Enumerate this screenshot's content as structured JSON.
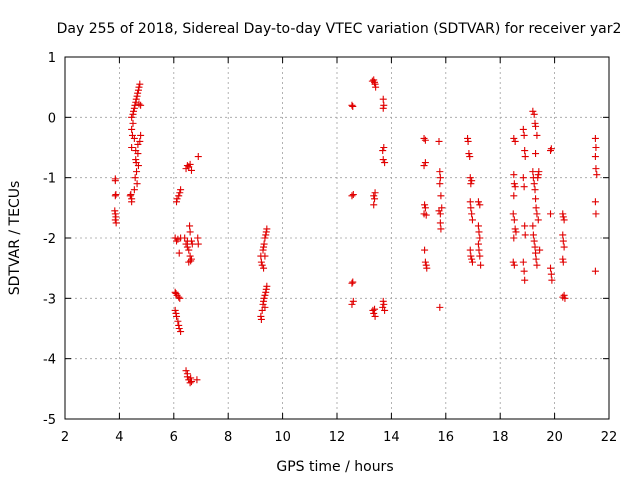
{
  "chart_data": {
    "type": "scatter",
    "title": "Day 255 of 2018, Sidereal Day-to-day VTEC variation (SDTVAR) for receiver yar2",
    "xlabel": "GPS time / hours",
    "ylabel": "SDTVAR / TECUs",
    "xlim": [
      2,
      22
    ],
    "ylim": [
      -5,
      1
    ],
    "xticks": [
      "2",
      "4",
      "6",
      "8",
      "10",
      "12",
      "14",
      "16",
      "18",
      "20",
      "22"
    ],
    "yticks": [
      "1",
      "0",
      "-1",
      "-2",
      "-3",
      "-4",
      "-5"
    ],
    "grid": true,
    "marker": "plus",
    "color": "#e00000",
    "series": [
      {
        "name": "SDTVAR",
        "points": [
          [
            3.85,
            -1.02
          ],
          [
            3.85,
            -1.05
          ],
          [
            3.87,
            -1.28
          ],
          [
            3.85,
            -1.3
          ],
          [
            3.83,
            -1.55
          ],
          [
            3.85,
            -1.6
          ],
          [
            3.87,
            -1.65
          ],
          [
            3.85,
            -1.7
          ],
          [
            3.88,
            -1.75
          ],
          [
            4.4,
            -1.3
          ],
          [
            4.42,
            -1.28
          ],
          [
            4.45,
            -1.4
          ],
          [
            4.45,
            -1.35
          ],
          [
            4.45,
            -0.5
          ],
          [
            4.45,
            -0.2
          ],
          [
            4.45,
            0.0
          ],
          [
            4.48,
            -0.3
          ],
          [
            4.5,
            -0.1
          ],
          [
            4.5,
            0.05
          ],
          [
            4.52,
            0.1
          ],
          [
            4.55,
            0.15
          ],
          [
            4.55,
            -0.35
          ],
          [
            4.57,
            0.2
          ],
          [
            4.6,
            0.25
          ],
          [
            4.6,
            -0.55
          ],
          [
            4.62,
            0.3
          ],
          [
            4.63,
            -0.9
          ],
          [
            4.65,
            0.35
          ],
          [
            4.65,
            -1.1
          ],
          [
            4.67,
            0.4
          ],
          [
            4.68,
            -0.6
          ],
          [
            4.7,
            0.45
          ],
          [
            4.7,
            -0.8
          ],
          [
            4.72,
            0.5
          ],
          [
            4.72,
            0.22
          ],
          [
            4.75,
            0.55
          ],
          [
            4.75,
            -0.4
          ],
          [
            4.78,
            0.2
          ],
          [
            4.78,
            -0.3
          ],
          [
            4.6,
            -0.7
          ],
          [
            4.55,
            -1.2
          ],
          [
            4.58,
            -1.0
          ],
          [
            4.62,
            -0.75
          ],
          [
            4.68,
            -0.45
          ],
          [
            6.1,
            -1.4
          ],
          [
            6.12,
            -1.35
          ],
          [
            6.18,
            -1.3
          ],
          [
            6.22,
            -1.25
          ],
          [
            6.25,
            -1.2
          ],
          [
            6.05,
            -2.0
          ],
          [
            6.1,
            -2.05
          ],
          [
            6.15,
            -2.02
          ],
          [
            6.2,
            -2.25
          ],
          [
            6.25,
            -2.0
          ],
          [
            6.05,
            -2.9
          ],
          [
            6.08,
            -2.92
          ],
          [
            6.12,
            -2.95
          ],
          [
            6.18,
            -2.98
          ],
          [
            6.22,
            -3.0
          ],
          [
            6.05,
            -3.2
          ],
          [
            6.08,
            -3.25
          ],
          [
            6.1,
            -3.3
          ],
          [
            6.15,
            -3.38
          ],
          [
            6.18,
            -3.45
          ],
          [
            6.2,
            -3.5
          ],
          [
            6.25,
            -3.55
          ],
          [
            6.45,
            -0.85
          ],
          [
            6.5,
            -0.8
          ],
          [
            6.55,
            -0.82
          ],
          [
            6.6,
            -0.78
          ],
          [
            6.65,
            -0.88
          ],
          [
            6.4,
            -2.0
          ],
          [
            6.45,
            -2.1
          ],
          [
            6.5,
            -2.15
          ],
          [
            6.55,
            -2.2
          ],
          [
            6.6,
            -2.3
          ],
          [
            6.65,
            -2.35
          ],
          [
            6.55,
            -2.4
          ],
          [
            6.62,
            -2.38
          ],
          [
            6.58,
            -1.8
          ],
          [
            6.6,
            -1.9
          ],
          [
            6.65,
            -2.05
          ],
          [
            6.68,
            -2.1
          ],
          [
            6.5,
            -2.05
          ],
          [
            6.45,
            -4.2
          ],
          [
            6.5,
            -4.3
          ],
          [
            6.55,
            -4.35
          ],
          [
            6.6,
            -4.4
          ],
          [
            6.62,
            -4.32
          ],
          [
            6.65,
            -4.38
          ],
          [
            6.5,
            -4.25
          ],
          [
            6.9,
            -0.65
          ],
          [
            6.88,
            -2.0
          ],
          [
            6.9,
            -2.1
          ],
          [
            6.85,
            -4.35
          ],
          [
            9.2,
            -2.3
          ],
          [
            9.22,
            -2.4
          ],
          [
            9.25,
            -2.45
          ],
          [
            9.28,
            -2.2
          ],
          [
            9.3,
            -2.15
          ],
          [
            9.32,
            -2.1
          ],
          [
            9.35,
            -2.0
          ],
          [
            9.38,
            -1.95
          ],
          [
            9.4,
            -1.9
          ],
          [
            9.42,
            -1.85
          ],
          [
            9.35,
            -2.3
          ],
          [
            9.3,
            -2.5
          ],
          [
            9.2,
            -3.3
          ],
          [
            9.22,
            -3.35
          ],
          [
            9.25,
            -3.2
          ],
          [
            9.28,
            -3.1
          ],
          [
            9.3,
            -3.05
          ],
          [
            9.32,
            -3.0
          ],
          [
            9.35,
            -2.95
          ],
          [
            9.38,
            -2.9
          ],
          [
            9.4,
            -2.85
          ],
          [
            9.42,
            -2.8
          ],
          [
            9.35,
            -3.15
          ],
          [
            12.55,
            0.2
          ],
          [
            12.58,
            0.18
          ],
          [
            12.55,
            -1.3
          ],
          [
            12.6,
            -1.28
          ],
          [
            12.55,
            -2.75
          ],
          [
            12.58,
            -2.73
          ],
          [
            12.55,
            -3.1
          ],
          [
            12.6,
            -3.05
          ],
          [
            13.3,
            0.6
          ],
          [
            13.35,
            0.62
          ],
          [
            13.38,
            0.58
          ],
          [
            13.4,
            0.55
          ],
          [
            13.42,
            0.5
          ],
          [
            13.35,
            -1.3
          ],
          [
            13.38,
            -1.35
          ],
          [
            13.4,
            -1.25
          ],
          [
            13.35,
            -1.45
          ],
          [
            13.32,
            -3.2
          ],
          [
            13.35,
            -3.25
          ],
          [
            13.4,
            -3.3
          ],
          [
            13.38,
            -3.18
          ],
          [
            13.7,
            0.3
          ],
          [
            13.72,
            0.2
          ],
          [
            13.7,
            0.15
          ],
          [
            13.68,
            -0.55
          ],
          [
            13.7,
            -0.7
          ],
          [
            13.72,
            -0.5
          ],
          [
            13.75,
            -0.75
          ],
          [
            13.7,
            -3.05
          ],
          [
            13.72,
            -3.1
          ],
          [
            13.75,
            -3.2
          ],
          [
            13.68,
            -3.15
          ],
          [
            15.2,
            -0.35
          ],
          [
            15.25,
            -0.38
          ],
          [
            15.2,
            -0.8
          ],
          [
            15.25,
            -0.75
          ],
          [
            15.22,
            -1.45
          ],
          [
            15.25,
            -1.5
          ],
          [
            15.2,
            -1.6
          ],
          [
            15.28,
            -1.62
          ],
          [
            15.22,
            -2.2
          ],
          [
            15.25,
            -2.4
          ],
          [
            15.28,
            -2.45
          ],
          [
            15.3,
            -2.5
          ],
          [
            15.75,
            -0.4
          ],
          [
            15.78,
            -0.9
          ],
          [
            15.8,
            -1.0
          ],
          [
            15.78,
            -1.1
          ],
          [
            15.82,
            -1.3
          ],
          [
            15.75,
            -1.55
          ],
          [
            15.8,
            -1.6
          ],
          [
            15.85,
            -1.5
          ],
          [
            15.8,
            -1.75
          ],
          [
            15.82,
            -1.85
          ],
          [
            15.78,
            -3.15
          ],
          [
            16.8,
            -0.35
          ],
          [
            16.82,
            -0.4
          ],
          [
            16.85,
            -0.6
          ],
          [
            16.88,
            -0.65
          ],
          [
            16.9,
            -1.0
          ],
          [
            16.92,
            -1.1
          ],
          [
            16.95,
            -1.05
          ],
          [
            16.9,
            -1.4
          ],
          [
            16.92,
            -1.5
          ],
          [
            16.95,
            -1.6
          ],
          [
            16.98,
            -1.7
          ],
          [
            16.9,
            -2.2
          ],
          [
            16.92,
            -2.3
          ],
          [
            16.95,
            -2.35
          ],
          [
            16.98,
            -2.4
          ],
          [
            17.2,
            -1.4
          ],
          [
            17.25,
            -1.45
          ],
          [
            17.2,
            -1.8
          ],
          [
            17.22,
            -1.9
          ],
          [
            17.25,
            -2.0
          ],
          [
            17.2,
            -2.1
          ],
          [
            17.22,
            -2.2
          ],
          [
            17.25,
            -2.3
          ],
          [
            17.28,
            -2.45
          ],
          [
            18.5,
            -0.35
          ],
          [
            18.55,
            -0.4
          ],
          [
            18.5,
            -0.95
          ],
          [
            18.52,
            -1.1
          ],
          [
            18.55,
            -1.15
          ],
          [
            18.5,
            -1.3
          ],
          [
            18.48,
            -1.6
          ],
          [
            18.52,
            -1.7
          ],
          [
            18.55,
            -1.85
          ],
          [
            18.58,
            -1.9
          ],
          [
            18.5,
            -2.0
          ],
          [
            18.48,
            -2.4
          ],
          [
            18.52,
            -2.45
          ],
          [
            18.85,
            -0.2
          ],
          [
            18.88,
            -0.3
          ],
          [
            18.9,
            -0.55
          ],
          [
            18.92,
            -0.65
          ],
          [
            18.85,
            -1.0
          ],
          [
            18.88,
            -1.15
          ],
          [
            18.9,
            -1.8
          ],
          [
            18.92,
            -1.95
          ],
          [
            18.85,
            -2.4
          ],
          [
            18.88,
            -2.55
          ],
          [
            18.9,
            -2.7
          ],
          [
            19.2,
            0.1
          ],
          [
            19.25,
            0.05
          ],
          [
            19.28,
            -0.1
          ],
          [
            19.3,
            -0.15
          ],
          [
            19.2,
            -0.9
          ],
          [
            19.22,
            -1.0
          ],
          [
            19.25,
            -1.1
          ],
          [
            19.28,
            -1.2
          ],
          [
            19.3,
            -1.35
          ],
          [
            19.32,
            -1.5
          ],
          [
            19.35,
            -1.6
          ],
          [
            19.2,
            -1.8
          ],
          [
            19.22,
            -1.95
          ],
          [
            19.25,
            -2.05
          ],
          [
            19.28,
            -2.15
          ],
          [
            19.3,
            -2.25
          ],
          [
            19.32,
            -2.35
          ],
          [
            19.35,
            -2.45
          ],
          [
            19.38,
            -1.0
          ],
          [
            19.4,
            -0.95
          ],
          [
            19.42,
            -0.9
          ],
          [
            19.3,
            -0.6
          ],
          [
            19.35,
            -0.3
          ],
          [
            19.45,
            -2.2
          ],
          [
            19.4,
            -1.7
          ],
          [
            19.85,
            -0.55
          ],
          [
            19.88,
            -0.52
          ],
          [
            19.85,
            -2.5
          ],
          [
            19.88,
            -2.6
          ],
          [
            19.9,
            -2.7
          ],
          [
            19.85,
            -1.6
          ],
          [
            20.3,
            -1.6
          ],
          [
            20.32,
            -1.65
          ],
          [
            20.35,
            -1.7
          ],
          [
            20.3,
            -1.95
          ],
          [
            20.32,
            -2.05
          ],
          [
            20.35,
            -2.15
          ],
          [
            20.3,
            -2.35
          ],
          [
            20.32,
            -2.4
          ],
          [
            20.35,
            -2.95
          ],
          [
            20.38,
            -3.0
          ],
          [
            20.3,
            -2.98
          ],
          [
            21.5,
            -0.35
          ],
          [
            21.52,
            -0.5
          ],
          [
            21.5,
            -0.65
          ],
          [
            21.52,
            -0.85
          ],
          [
            21.55,
            -0.95
          ],
          [
            21.5,
            -1.4
          ],
          [
            21.52,
            -1.6
          ],
          [
            21.5,
            -2.55
          ]
        ]
      }
    ]
  }
}
